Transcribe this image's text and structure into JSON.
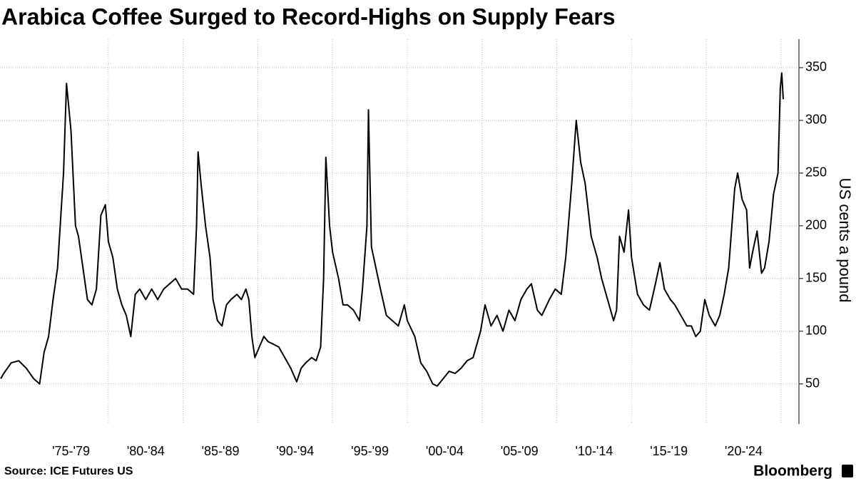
{
  "chart_data": {
    "type": "line",
    "title": "Arabica Coffee Surged to Record-Highs on Supply Fears",
    "y_label": "US cents a pound",
    "source": "Source: ICE Futures US",
    "brand": "Bloomberg",
    "xlim": [
      1972.75,
      2026.2
    ],
    "ylim": [
      12,
      377
    ],
    "yticks": [
      50,
      100,
      150,
      200,
      250,
      300,
      350
    ],
    "xticks": [
      {
        "value": 1977.5,
        "label": "'75-'79"
      },
      {
        "value": 1982.5,
        "label": "'80-'84"
      },
      {
        "value": 1987.5,
        "label": "'85-'89"
      },
      {
        "value": 1992.5,
        "label": "'90-'94"
      },
      {
        "value": 1997.5,
        "label": "'95-'99"
      },
      {
        "value": 2002.5,
        "label": "'00-'04"
      },
      {
        "value": 2007.5,
        "label": "'05-'09"
      },
      {
        "value": 2012.5,
        "label": "'10-'14"
      },
      {
        "value": 2017.5,
        "label": "'15-'19"
      },
      {
        "value": 2022.5,
        "label": "'20-'24"
      }
    ],
    "x_gridlines": [
      1980,
      1985,
      1990,
      1995,
      2000,
      2005,
      2010,
      2015,
      2020,
      2025
    ],
    "grid": true,
    "series": [
      {
        "name": "Arabica coffee",
        "color": "#000000",
        "x": [
          1972.8,
          1973.0,
          1973.5,
          1974.0,
          1974.5,
          1975.0,
          1975.4,
          1975.7,
          1976.0,
          1976.3,
          1976.6,
          1977.0,
          1977.2,
          1977.5,
          1977.8,
          1978.0,
          1978.3,
          1978.6,
          1978.9,
          1979.2,
          1979.5,
          1979.8,
          1980.0,
          1980.3,
          1980.6,
          1980.9,
          1981.2,
          1981.5,
          1981.8,
          1982.1,
          1982.5,
          1982.9,
          1983.3,
          1983.7,
          1984.1,
          1984.5,
          1984.9,
          1985.3,
          1985.7,
          1985.9,
          1986.0,
          1986.2,
          1986.5,
          1986.8,
          1987.0,
          1987.3,
          1987.6,
          1987.9,
          1988.2,
          1988.6,
          1988.9,
          1989.2,
          1989.4,
          1989.6,
          1989.8,
          1990.1,
          1990.4,
          1990.7,
          1991.0,
          1991.4,
          1991.8,
          1992.2,
          1992.6,
          1992.9,
          1993.2,
          1993.6,
          1993.9,
          1994.2,
          1994.4,
          1994.55,
          1994.8,
          1995.0,
          1995.4,
          1995.7,
          1996.0,
          1996.4,
          1996.8,
          1997.0,
          1997.3,
          1997.4,
          1997.6,
          1997.9,
          1998.2,
          1998.6,
          1999.0,
          1999.4,
          1999.8,
          2000.0,
          2000.5,
          2000.9,
          2001.3,
          2001.7,
          2002.0,
          2002.4,
          2002.8,
          2003.2,
          2003.6,
          2004.0,
          2004.4,
          2004.9,
          2005.2,
          2005.6,
          2006.0,
          2006.4,
          2006.8,
          2007.2,
          2007.6,
          2008.0,
          2008.3,
          2008.7,
          2009.0,
          2009.5,
          2009.9,
          2010.3,
          2010.6,
          2011.0,
          2011.3,
          2011.6,
          2011.9,
          2012.3,
          2012.7,
          2013.0,
          2013.4,
          2013.8,
          2014.0,
          2014.2,
          2014.5,
          2014.8,
          2015.0,
          2015.4,
          2015.8,
          2016.2,
          2016.6,
          2016.9,
          2017.2,
          2017.6,
          2017.9,
          2018.3,
          2018.7,
          2019.0,
          2019.3,
          2019.6,
          2019.9,
          2020.2,
          2020.6,
          2020.9,
          2021.2,
          2021.5,
          2021.9,
          2022.1,
          2022.4,
          2022.7,
          2022.9,
          2023.1,
          2023.4,
          2023.7,
          2023.9,
          2024.2,
          2024.5,
          2024.8,
          2024.95,
          2025.05,
          2025.15
        ],
        "values": [
          55,
          60,
          70,
          72,
          65,
          55,
          50,
          80,
          95,
          130,
          160,
          250,
          335,
          290,
          200,
          190,
          160,
          130,
          125,
          140,
          210,
          220,
          185,
          170,
          140,
          125,
          115,
          95,
          135,
          140,
          130,
          140,
          130,
          140,
          145,
          150,
          140,
          140,
          135,
          200,
          270,
          240,
          200,
          170,
          130,
          110,
          105,
          125,
          130,
          135,
          130,
          140,
          130,
          95,
          75,
          85,
          95,
          90,
          88,
          85,
          75,
          65,
          52,
          65,
          70,
          75,
          72,
          85,
          150,
          265,
          200,
          175,
          150,
          125,
          125,
          120,
          110,
          140,
          200,
          310,
          180,
          160,
          140,
          115,
          110,
          105,
          125,
          110,
          95,
          70,
          62,
          50,
          48,
          55,
          62,
          60,
          65,
          72,
          75,
          100,
          125,
          105,
          115,
          100,
          120,
          110,
          130,
          140,
          145,
          120,
          115,
          130,
          140,
          135,
          170,
          240,
          300,
          260,
          240,
          190,
          170,
          150,
          130,
          110,
          120,
          190,
          175,
          215,
          170,
          135,
          125,
          120,
          145,
          165,
          140,
          130,
          125,
          115,
          105,
          105,
          95,
          100,
          130,
          115,
          105,
          115,
          135,
          160,
          235,
          250,
          225,
          215,
          160,
          175,
          195,
          155,
          160,
          185,
          230,
          250,
          330,
          345,
          320
        ]
      }
    ]
  }
}
